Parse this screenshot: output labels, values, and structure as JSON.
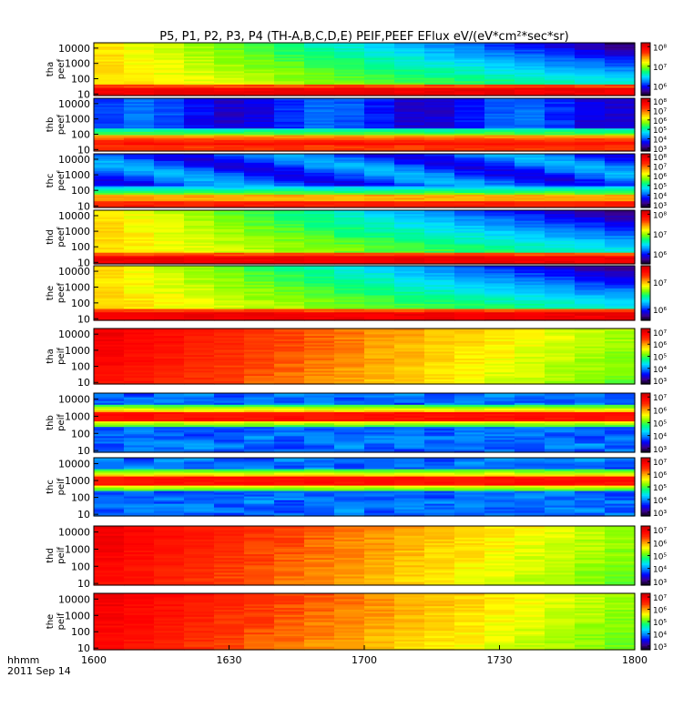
{
  "title": "P5, P1, P2, P3, P4 (TH-A,B,C,D,E) PEIF,PEEF EFlux eV/(eV*cm²*sec*sr)",
  "time_axis": {
    "label": "hhmm",
    "date": "2011 Sep 14",
    "ticks": [
      "1600",
      "1630",
      "1700",
      "1730",
      "1800"
    ],
    "range": [
      "16:00",
      "18:00"
    ]
  },
  "colors": {
    "colormap": [
      "#000000",
      "#3a0090",
      "#0000ff",
      "#0080ff",
      "#00e0ff",
      "#00ff80",
      "#80ff00",
      "#ffff00",
      "#ffa000",
      "#ff3000",
      "#ff0000",
      "#c80000"
    ],
    "background": "#ffffff"
  },
  "chart_data": [
    {
      "type": "heatmap",
      "ylabel": [
        "tha",
        "peef"
      ],
      "energy_ticks": [
        "10000",
        "1000",
        "100",
        "10"
      ],
      "colorbar_ticks": [
        "10⁸",
        "10⁷",
        "10⁶"
      ],
      "color_range_exp": [
        5.5,
        8.2
      ],
      "pattern": "peef_fade"
    },
    {
      "type": "heatmap",
      "ylabel": [
        "thb",
        "peef"
      ],
      "energy_ticks": [
        "10000",
        "1000",
        "100",
        "10"
      ],
      "colorbar_ticks": [
        "10⁸",
        "10⁷",
        "10⁶",
        "10⁵",
        "10⁴",
        "10³"
      ],
      "color_range_exp": [
        2.7,
        8.3
      ],
      "pattern": "peef_low"
    },
    {
      "type": "heatmap",
      "ylabel": [
        "thc",
        "peef"
      ],
      "energy_ticks": [
        "10000",
        "1000",
        "100",
        "10"
      ],
      "colorbar_ticks": [
        "10⁸",
        "10⁷",
        "10⁶",
        "10⁵",
        "10⁴",
        "10³"
      ],
      "color_range_exp": [
        2.7,
        8.3
      ],
      "pattern": "peef_low2"
    },
    {
      "type": "heatmap",
      "ylabel": [
        "thd",
        "peef"
      ],
      "energy_ticks": [
        "10000",
        "1000",
        "100",
        "10"
      ],
      "colorbar_ticks": [
        "10⁸",
        "10⁷",
        "10⁶"
      ],
      "color_range_exp": [
        5.5,
        8.2
      ],
      "pattern": "peef_fade"
    },
    {
      "type": "heatmap",
      "ylabel": [
        "the",
        "peef"
      ],
      "energy_ticks": [
        "10000",
        "1000",
        "100",
        "10"
      ],
      "colorbar_ticks": [
        "10⁷",
        "10⁶"
      ],
      "color_range_exp": [
        5.6,
        7.6
      ],
      "pattern": "peef_fade"
    },
    {
      "type": "heatmap",
      "ylabel": [
        "tha",
        "peif"
      ],
      "energy_ticks": [
        "10000",
        "1000",
        "100",
        "10"
      ],
      "colorbar_ticks": [
        "10⁷",
        "10⁶",
        "10⁵",
        "10⁴",
        "10³"
      ],
      "color_range_exp": [
        2.7,
        7.3
      ],
      "pattern": "peif_hot"
    },
    {
      "type": "heatmap",
      "ylabel": [
        "thb",
        "peif"
      ],
      "energy_ticks": [
        "10000",
        "1000",
        "100",
        "10"
      ],
      "colorbar_ticks": [
        "10⁷",
        "10⁶",
        "10⁵",
        "10⁴",
        "10³"
      ],
      "color_range_exp": [
        2.7,
        7.3
      ],
      "pattern": "peif_band"
    },
    {
      "type": "heatmap",
      "ylabel": [
        "thc",
        "peif"
      ],
      "energy_ticks": [
        "10000",
        "1000",
        "100",
        "10"
      ],
      "colorbar_ticks": [
        "10⁷",
        "10⁶",
        "10⁵",
        "10⁴",
        "10³"
      ],
      "color_range_exp": [
        2.7,
        7.3
      ],
      "pattern": "peif_band"
    },
    {
      "type": "heatmap",
      "ylabel": [
        "thd",
        "peif"
      ],
      "energy_ticks": [
        "10000",
        "1000",
        "100",
        "10"
      ],
      "colorbar_ticks": [
        "10⁷",
        "10⁶",
        "10⁵",
        "10⁴",
        "10³"
      ],
      "color_range_exp": [
        2.7,
        7.3
      ],
      "pattern": "peif_hot"
    },
    {
      "type": "heatmap",
      "ylabel": [
        "the",
        "peif"
      ],
      "energy_ticks": [
        "10000",
        "1000",
        "100",
        "10"
      ],
      "colorbar_ticks": [
        "10⁷",
        "10⁶",
        "10⁵",
        "10⁴",
        "10³"
      ],
      "color_range_exp": [
        2.7,
        7.3
      ],
      "pattern": "peif_hot"
    }
  ]
}
